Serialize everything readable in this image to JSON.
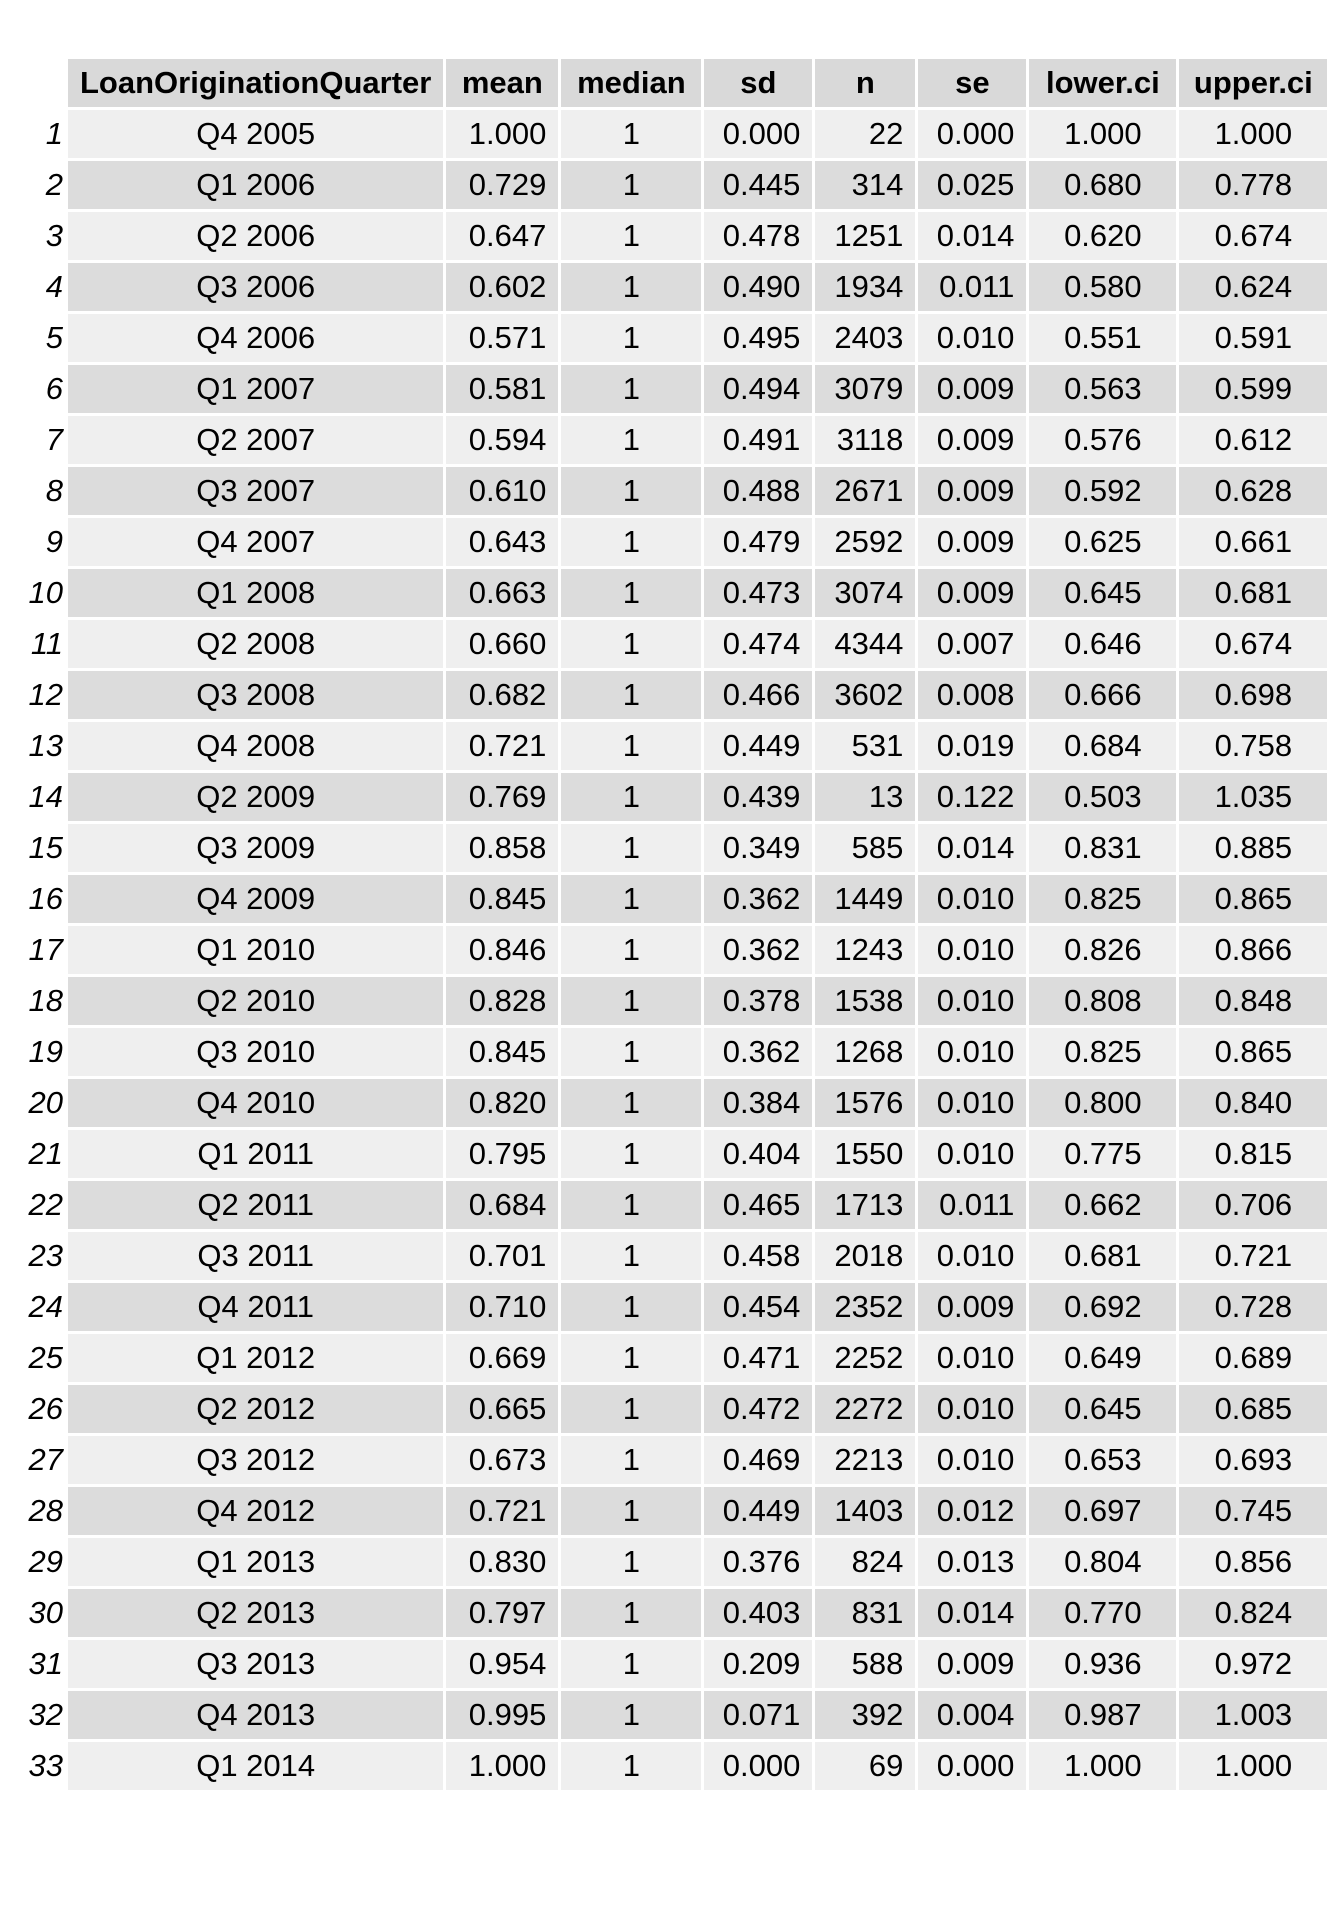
{
  "chart_data": {
    "type": "table",
    "columns": [
      "LoanOriginationQuarter",
      "mean",
      "median",
      "sd",
      "n",
      "se",
      "lower.ci",
      "upper.ci"
    ],
    "rows": [
      [
        "1",
        "Q4 2005",
        "1.000",
        "1",
        "0.000",
        "22",
        "0.000",
        "1.000",
        "1.000"
      ],
      [
        "2",
        "Q1 2006",
        "0.729",
        "1",
        "0.445",
        "314",
        "0.025",
        "0.680",
        "0.778"
      ],
      [
        "3",
        "Q2 2006",
        "0.647",
        "1",
        "0.478",
        "1251",
        "0.014",
        "0.620",
        "0.674"
      ],
      [
        "4",
        "Q3 2006",
        "0.602",
        "1",
        "0.490",
        "1934",
        "0.011",
        "0.580",
        "0.624"
      ],
      [
        "5",
        "Q4 2006",
        "0.571",
        "1",
        "0.495",
        "2403",
        "0.010",
        "0.551",
        "0.591"
      ],
      [
        "6",
        "Q1 2007",
        "0.581",
        "1",
        "0.494",
        "3079",
        "0.009",
        "0.563",
        "0.599"
      ],
      [
        "7",
        "Q2 2007",
        "0.594",
        "1",
        "0.491",
        "3118",
        "0.009",
        "0.576",
        "0.612"
      ],
      [
        "8",
        "Q3 2007",
        "0.610",
        "1",
        "0.488",
        "2671",
        "0.009",
        "0.592",
        "0.628"
      ],
      [
        "9",
        "Q4 2007",
        "0.643",
        "1",
        "0.479",
        "2592",
        "0.009",
        "0.625",
        "0.661"
      ],
      [
        "10",
        "Q1 2008",
        "0.663",
        "1",
        "0.473",
        "3074",
        "0.009",
        "0.645",
        "0.681"
      ],
      [
        "11",
        "Q2 2008",
        "0.660",
        "1",
        "0.474",
        "4344",
        "0.007",
        "0.646",
        "0.674"
      ],
      [
        "12",
        "Q3 2008",
        "0.682",
        "1",
        "0.466",
        "3602",
        "0.008",
        "0.666",
        "0.698"
      ],
      [
        "13",
        "Q4 2008",
        "0.721",
        "1",
        "0.449",
        "531",
        "0.019",
        "0.684",
        "0.758"
      ],
      [
        "14",
        "Q2 2009",
        "0.769",
        "1",
        "0.439",
        "13",
        "0.122",
        "0.503",
        "1.035"
      ],
      [
        "15",
        "Q3 2009",
        "0.858",
        "1",
        "0.349",
        "585",
        "0.014",
        "0.831",
        "0.885"
      ],
      [
        "16",
        "Q4 2009",
        "0.845",
        "1",
        "0.362",
        "1449",
        "0.010",
        "0.825",
        "0.865"
      ],
      [
        "17",
        "Q1 2010",
        "0.846",
        "1",
        "0.362",
        "1243",
        "0.010",
        "0.826",
        "0.866"
      ],
      [
        "18",
        "Q2 2010",
        "0.828",
        "1",
        "0.378",
        "1538",
        "0.010",
        "0.808",
        "0.848"
      ],
      [
        "19",
        "Q3 2010",
        "0.845",
        "1",
        "0.362",
        "1268",
        "0.010",
        "0.825",
        "0.865"
      ],
      [
        "20",
        "Q4 2010",
        "0.820",
        "1",
        "0.384",
        "1576",
        "0.010",
        "0.800",
        "0.840"
      ],
      [
        "21",
        "Q1 2011",
        "0.795",
        "1",
        "0.404",
        "1550",
        "0.010",
        "0.775",
        "0.815"
      ],
      [
        "22",
        "Q2 2011",
        "0.684",
        "1",
        "0.465",
        "1713",
        "0.011",
        "0.662",
        "0.706"
      ],
      [
        "23",
        "Q3 2011",
        "0.701",
        "1",
        "0.458",
        "2018",
        "0.010",
        "0.681",
        "0.721"
      ],
      [
        "24",
        "Q4 2011",
        "0.710",
        "1",
        "0.454",
        "2352",
        "0.009",
        "0.692",
        "0.728"
      ],
      [
        "25",
        "Q1 2012",
        "0.669",
        "1",
        "0.471",
        "2252",
        "0.010",
        "0.649",
        "0.689"
      ],
      [
        "26",
        "Q2 2012",
        "0.665",
        "1",
        "0.472",
        "2272",
        "0.010",
        "0.645",
        "0.685"
      ],
      [
        "27",
        "Q3 2012",
        "0.673",
        "1",
        "0.469",
        "2213",
        "0.010",
        "0.653",
        "0.693"
      ],
      [
        "28",
        "Q4 2012",
        "0.721",
        "1",
        "0.449",
        "1403",
        "0.012",
        "0.697",
        "0.745"
      ],
      [
        "29",
        "Q1 2013",
        "0.830",
        "1",
        "0.376",
        "824",
        "0.013",
        "0.804",
        "0.856"
      ],
      [
        "30",
        "Q2 2013",
        "0.797",
        "1",
        "0.403",
        "831",
        "0.014",
        "0.770",
        "0.824"
      ],
      [
        "31",
        "Q3 2013",
        "0.954",
        "1",
        "0.209",
        "588",
        "0.009",
        "0.936",
        "0.972"
      ],
      [
        "32",
        "Q4 2013",
        "0.995",
        "1",
        "0.071",
        "392",
        "0.004",
        "0.987",
        "1.003"
      ],
      [
        "33",
        "Q1 2014",
        "1.000",
        "1",
        "0.000",
        "69",
        "0.000",
        "1.000",
        "1.000"
      ]
    ]
  },
  "colors": {
    "header_bg": "#d9d9d9",
    "row_odd_bg": "#efefef",
    "row_even_bg": "#dcdcdc",
    "text": "#000000"
  }
}
